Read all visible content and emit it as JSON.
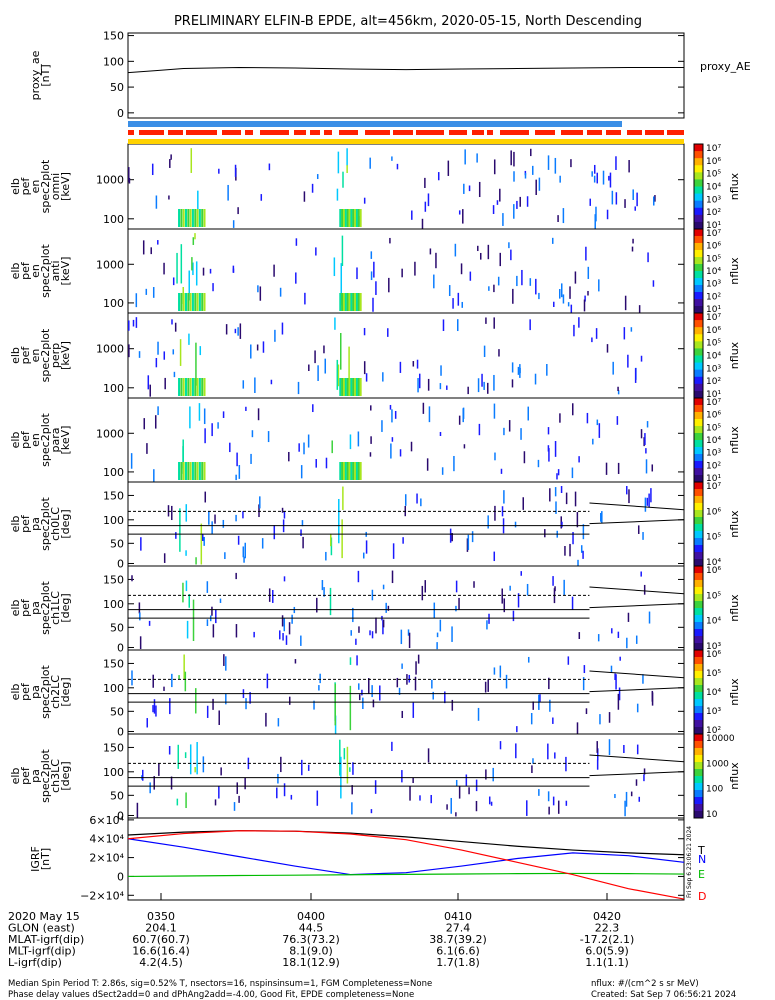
{
  "title": "PRELIMINARY ELFIN-B EPDE, alt=456km, 2020-05-15, North Descending",
  "chart_data": [
    {
      "type": "line",
      "name": "proxy_ae",
      "ylabel": [
        "proxy_ae",
        "[nT]"
      ],
      "legend": "proxy_AE",
      "ylim": [
        -10,
        155
      ],
      "yticks": [
        "150",
        "100",
        "50",
        "0"
      ],
      "yticks_values": [
        150,
        100,
        50,
        0
      ],
      "x": [
        0,
        0.05,
        0.1,
        0.2,
        0.3,
        0.4,
        0.5,
        0.6,
        0.7,
        0.8,
        0.9,
        1.0
      ],
      "values": [
        78,
        82,
        86,
        88,
        87,
        85,
        84,
        85,
        86,
        87,
        88,
        88
      ]
    },
    {
      "type": "heatmap",
      "name": "elb_pef_en_spec2plot_omni",
      "ylabel": [
        "elb",
        "pef",
        "en",
        "spec2plot",
        "omni",
        "[keV]"
      ],
      "yticks": [
        "1000",
        "100"
      ],
      "colorbar_label": "nflux",
      "colorbar_ticks": [
        "10⁷",
        "10⁶",
        "10⁵",
        "10⁴",
        "10³",
        "10²",
        "10¹"
      ]
    },
    {
      "type": "heatmap",
      "name": "elb_pef_en_spec2plot_anti",
      "ylabel": [
        "elb",
        "pef",
        "en",
        "spec2plot",
        "anti",
        "[keV]"
      ],
      "yticks": [
        "1000",
        "100"
      ],
      "colorbar_label": "nflux",
      "colorbar_ticks": [
        "10⁷",
        "10⁶",
        "10⁵",
        "10⁴",
        "10³",
        "10²",
        "10¹"
      ]
    },
    {
      "type": "heatmap",
      "name": "elb_pef_en_spec2plot_perp",
      "ylabel": [
        "elb",
        "pef",
        "en",
        "spec2plot",
        "perp",
        "[keV]"
      ],
      "yticks": [
        "1000",
        "100"
      ],
      "colorbar_label": "nflux",
      "colorbar_ticks": [
        "10⁷",
        "10⁶",
        "10⁵",
        "10⁴",
        "10³",
        "10²",
        "10¹"
      ]
    },
    {
      "type": "heatmap",
      "name": "elb_pef_en_spec2plot_para",
      "ylabel": [
        "elb",
        "pef",
        "en",
        "spec2plot",
        "para",
        "[keV]"
      ],
      "yticks": [
        "1000",
        "100"
      ],
      "colorbar_label": "nflux",
      "colorbar_ticks": [
        "10⁷",
        "10⁶",
        "10⁵",
        "10⁴",
        "10³",
        "10²",
        "10¹"
      ]
    },
    {
      "type": "heatmap",
      "name": "elb_pef_pa_spec2plot_ch0LC",
      "ylabel": [
        "elb",
        "pef",
        "pa",
        "spec2plot",
        "ch0LC",
        "[deg]"
      ],
      "yticks": [
        "150",
        "100",
        "50",
        "0"
      ],
      "colorbar_label": "nflux",
      "colorbar_ticks": [
        "10⁷",
        "10⁶",
        "10⁵",
        "10⁴"
      ]
    },
    {
      "type": "heatmap",
      "name": "elb_pef_pa_spec2plot_ch1LC",
      "ylabel": [
        "elb",
        "pef",
        "pa",
        "spec2plot",
        "ch1LC",
        "[deg]"
      ],
      "yticks": [
        "150",
        "100",
        "50",
        "0"
      ],
      "colorbar_label": "nflux",
      "colorbar_ticks": [
        "10⁶",
        "10⁵",
        "10⁴",
        "10³"
      ]
    },
    {
      "type": "heatmap",
      "name": "elb_pef_pa_spec2plot_ch2LC",
      "ylabel": [
        "elb",
        "pef",
        "pa",
        "spec2plot",
        "ch2LC",
        "[deg]"
      ],
      "yticks": [
        "150",
        "100",
        "50",
        "0"
      ],
      "colorbar_label": "nflux",
      "colorbar_ticks": [
        "10⁶",
        "10⁵",
        "10⁴",
        "10³",
        "10²"
      ]
    },
    {
      "type": "heatmap",
      "name": "elb_pef_pa_spec2plot_ch3LC",
      "ylabel": [
        "elb",
        "pef",
        "pa",
        "spec2plot",
        "ch3LC",
        "[deg]"
      ],
      "yticks": [
        "150",
        "100",
        "50",
        "0"
      ],
      "colorbar_label": "nflux",
      "colorbar_ticks": [
        "10000",
        "1000",
        "100",
        "10"
      ]
    },
    {
      "type": "line",
      "name": "IGRF",
      "ylabel": [
        "IGRF",
        "[nT]"
      ],
      "ylim": [
        -25000,
        62000
      ],
      "yticks": [
        "6×10⁴",
        "4×10⁴",
        "2×10⁴",
        "0",
        "−2×10⁴"
      ],
      "yticks_values": [
        60000,
        40000,
        20000,
        0,
        -20000
      ],
      "x": [
        0,
        0.1,
        0.2,
        0.3,
        0.4,
        0.5,
        0.6,
        0.7,
        0.8,
        0.9,
        1.0
      ],
      "series": [
        {
          "name": "T",
          "color": "#000000",
          "values": [
            44000,
            47000,
            48500,
            48000,
            46000,
            42000,
            37000,
            32000,
            28000,
            25000,
            23000
          ]
        },
        {
          "name": "N",
          "color": "#0000ff",
          "values": [
            40000,
            31000,
            21000,
            11000,
            2000,
            4000,
            11000,
            19000,
            25000,
            22000,
            15000
          ]
        },
        {
          "name": "E",
          "color": "#00bb00",
          "values": [
            0,
            500,
            1000,
            1300,
            1800,
            2200,
            2600,
            3000,
            3200,
            3000,
            2500
          ]
        },
        {
          "name": "D",
          "color": "#ff0000",
          "values": [
            40000,
            45500,
            48500,
            48000,
            45000,
            39000,
            28000,
            15000,
            2000,
            -13000,
            -24000
          ]
        }
      ]
    }
  ],
  "side_stamp": "Fri Sep  6 23:06:21 2024",
  "xaxis_labels": [
    {
      "row": "2020 May 15",
      "values": [
        "0350",
        "0400",
        "0410",
        "0420"
      ]
    },
    {
      "row": "GLON (east)",
      "values": [
        "204.1",
        "44.5",
        "27.4",
        "22.3"
      ]
    },
    {
      "row": "MLAT-igrf(dip)",
      "values": [
        "60.7(60.7)",
        "76.3(73.2)",
        "38.7(39.2)",
        "-17.2(2.1)"
      ]
    },
    {
      "row": "MLT-igrf(dip)",
      "values": [
        "16.6(16.4)",
        "8.1(9.0)",
        "6.1(6.6)",
        "6.0(5.9)"
      ]
    },
    {
      "row": "L-igrf(dip)",
      "values": [
        "4.2(4.5)",
        "18.1(12.9)",
        "1.7(1.8)",
        "1.1(1.1)"
      ]
    }
  ],
  "footer": {
    "line1": "Median Spin Period T: 2.86s, sig=0.52% T, nsectors=16, nspinsinsum=1, FGM Completeness=None",
    "line2": "Phase delay values dSect2add=0 and dPhAng2add=-4.00, Good Fit, EPDE completeness=None",
    "units": "nflux: #/(cm^2 s sr MeV)",
    "created": "Created: Sat Sep  7 06:56:21 2024"
  }
}
